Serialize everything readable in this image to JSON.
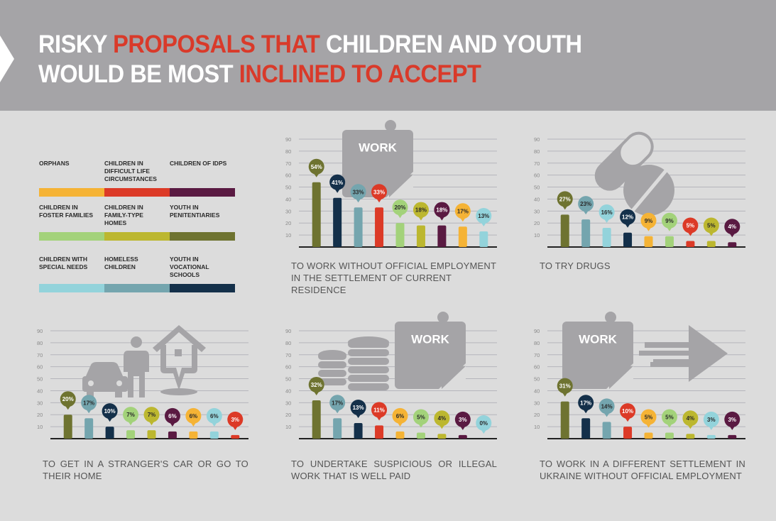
{
  "header": {
    "title_line1": [
      {
        "text": "RISKY ",
        "highlight": false
      },
      {
        "text": "PROPOSALS THAT ",
        "highlight": true
      },
      {
        "text": "CHILDREN AND YOUTH",
        "highlight": false
      }
    ],
    "title_line2": [
      {
        "text": "WOULD BE MOST ",
        "highlight": false
      },
      {
        "text": "INCLINED TO ACCEPT",
        "highlight": true
      }
    ],
    "highlight_color": "#d93a2a"
  },
  "legend": [
    {
      "key": "orphans",
      "label": "ORPHANS",
      "color": "#f5b335"
    },
    {
      "key": "difficult",
      "label": "CHILDREN IN DIFFICULT LIFE CIRCUMSTANCES",
      "color": "#dc3a27"
    },
    {
      "key": "idps",
      "label": "CHILDREN OF IDPs",
      "color": "#5a1a42"
    },
    {
      "key": "foster",
      "label": "CHILDREN IN FOSTER FAMILIES",
      "color": "#a3d27a"
    },
    {
      "key": "familytype",
      "label": "CHILDREN IN FAMILY-TYPE HOMES",
      "color": "#bcb72f"
    },
    {
      "key": "penitentiaries",
      "label": "YOUTH IN PENITENTIARIES",
      "color": "#6e7330"
    },
    {
      "key": "specialneeds",
      "label": "CHILDREN WITH SPECIAL NEEDS",
      "color": "#93d3db"
    },
    {
      "key": "homeless",
      "label": "HOMELESS CHILDREN",
      "color": "#74a5ae"
    },
    {
      "key": "vocational",
      "label": "YOUTH IN VOCATIONAL SCHOOLS",
      "color": "#14304a"
    }
  ],
  "chart_data": [
    {
      "type": "bar",
      "title": "TO WORK WITHOUT OFFICIAL EMPLOYMENT IN THE SETTLEMENT OF CURRENT RESIDENCE",
      "icon": "work-note-icon",
      "yticks": [
        10,
        20,
        30,
        40,
        50,
        60,
        70,
        80,
        90
      ],
      "ylim": [
        0,
        90
      ],
      "grid": true,
      "categories": [
        "penitentiaries",
        "vocational",
        "homeless",
        "difficult",
        "foster",
        "familytype",
        "idps",
        "orphans",
        "specialneeds"
      ],
      "values": [
        54,
        41,
        33,
        33,
        20,
        18,
        18,
        17,
        13
      ],
      "labels": [
        "54%",
        "41%",
        "33%",
        "33%",
        "20%",
        "18%",
        "18%",
        "17%",
        "13%"
      ]
    },
    {
      "type": "bar",
      "title": "TO TRY DRUGS",
      "icon": "pills-icon",
      "yticks": [
        10,
        20,
        30,
        40,
        50,
        60,
        70,
        80,
        90
      ],
      "ylim": [
        0,
        90
      ],
      "grid": true,
      "categories": [
        "penitentiaries",
        "homeless",
        "specialneeds",
        "vocational",
        "orphans",
        "foster",
        "difficult",
        "familytype",
        "idps"
      ],
      "values": [
        27,
        23,
        16,
        12,
        9,
        9,
        5,
        5,
        4
      ],
      "labels": [
        "27%",
        "23%",
        "16%",
        "12%",
        "9%",
        "9%",
        "5%",
        "5%",
        "4%"
      ]
    },
    {
      "type": "bar",
      "title": "TO GET IN A STRANGER'S CAR OR GO TO THEIR HOME",
      "icon": "car-person-house-icon",
      "yticks": [
        10,
        20,
        30,
        40,
        50,
        60,
        70,
        80,
        90
      ],
      "ylim": [
        0,
        90
      ],
      "grid": true,
      "categories": [
        "penitentiaries",
        "homeless",
        "vocational",
        "foster",
        "familytype",
        "idps",
        "orphans",
        "specialneeds",
        "difficult"
      ],
      "values": [
        20,
        17,
        10,
        7,
        7,
        6,
        6,
        6,
        3
      ],
      "labels": [
        "20%",
        "17%",
        "10%",
        "7%",
        "7%",
        "6%",
        "6%",
        "6%",
        "3%"
      ]
    },
    {
      "type": "bar",
      "title": "TO UNDERTAKE SUSPICIOUS OR ILLEGAL WORK THAT IS WELL PAID",
      "icon": "coins-work-icon",
      "yticks": [
        10,
        20,
        30,
        40,
        50,
        60,
        70,
        80,
        90
      ],
      "ylim": [
        0,
        90
      ],
      "grid": true,
      "categories": [
        "penitentiaries",
        "homeless",
        "vocational",
        "difficult",
        "orphans",
        "foster",
        "familytype",
        "idps",
        "specialneeds"
      ],
      "values": [
        32,
        17,
        13,
        11,
        6,
        5,
        4,
        3,
        0
      ],
      "labels": [
        "32%",
        "17%",
        "13%",
        "11%",
        "6%",
        "5%",
        "4%",
        "3%",
        "0%"
      ]
    },
    {
      "type": "bar",
      "title": "TO WORK IN A DIFFERENT SETTLEMENT IN UKRAINE WITHOUT OFFICIAL EMPLOYMENT",
      "icon": "work-arrow-icon",
      "yticks": [
        10,
        20,
        30,
        40,
        50,
        60,
        70,
        80,
        90
      ],
      "ylim": [
        0,
        90
      ],
      "grid": true,
      "categories": [
        "penitentiaries",
        "vocational",
        "homeless",
        "difficult",
        "orphans",
        "foster",
        "familytype",
        "specialneeds",
        "idps"
      ],
      "values": [
        31,
        17,
        14,
        10,
        5,
        5,
        4,
        3,
        3
      ],
      "labels": [
        "31%",
        "17%",
        "14%",
        "10%",
        "5%",
        "5%",
        "4%",
        "3%",
        "3%"
      ]
    }
  ],
  "icon_text": "WORK"
}
